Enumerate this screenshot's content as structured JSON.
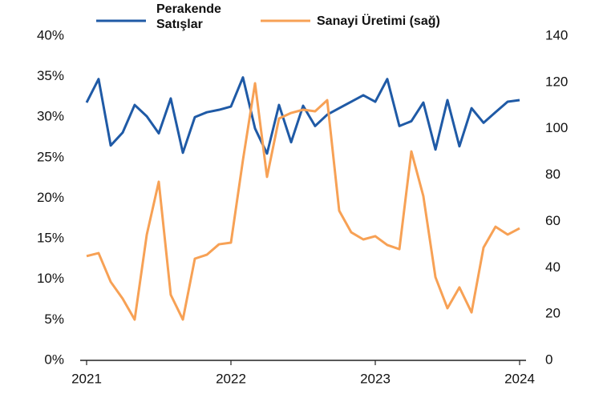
{
  "chart_data": {
    "type": "line",
    "x": [
      2021,
      2021.083,
      2021.167,
      2021.25,
      2021.333,
      2021.417,
      2021.5,
      2021.583,
      2021.667,
      2021.75,
      2021.833,
      2021.917,
      2022,
      2022.083,
      2022.167,
      2022.25,
      2022.333,
      2022.417,
      2022.5,
      2022.583,
      2022.667,
      2022.75,
      2022.833,
      2022.917,
      2023,
      2023.083,
      2023.167,
      2023.25,
      2023.333,
      2023.417,
      2023.5,
      2023.583,
      2023.667,
      2023.75,
      2023.833,
      2023.917,
      2024
    ],
    "series": [
      {
        "name": "Perakende Satışlar",
        "color": "#1f5aa6",
        "axis": "y",
        "values": [
          31.8,
          34.7,
          26.5,
          28.1,
          31.5,
          30.1,
          28,
          32.3,
          25.6,
          30,
          30.6,
          30.9,
          31.3,
          34.9,
          28.6,
          25.5,
          31.5,
          26.9,
          31.4,
          28.9,
          30.3,
          31.1,
          31.9,
          32.7,
          31.9,
          34.7,
          28.9,
          29.5,
          31.8,
          26,
          32.1,
          26.4,
          31.1,
          29.3,
          30.6,
          31.9,
          32.1
        ]
      },
      {
        "name": "Sanayi Üretimi (sağ)",
        "color": "#f7a155",
        "axis": "y2",
        "values": [
          45,
          46.3,
          33.9,
          26.6,
          17.6,
          54.3,
          77.1,
          28.3,
          17.6,
          43.9,
          45.6,
          50.1,
          50.8,
          86.4,
          119.6,
          79.2,
          104.4,
          106.8,
          108.2,
          107.5,
          112.3,
          64.6,
          55.3,
          52.2,
          53.6,
          49.8,
          48,
          90.2,
          70.9,
          35.9,
          22.5,
          31.5,
          20.7,
          48.7,
          57.7,
          54.3,
          57
        ]
      }
    ],
    "xlim": [
      2021,
      2024
    ],
    "xticks": [
      2021,
      2022,
      2023,
      2024
    ],
    "ylim": [
      0,
      40
    ],
    "yticks": [
      {
        "value": 0,
        "label": "0%"
      },
      {
        "value": 5,
        "label": "5%"
      },
      {
        "value": 10,
        "label": "10%"
      },
      {
        "value": 15,
        "label": "15%"
      },
      {
        "value": 20,
        "label": "20%"
      },
      {
        "value": 25,
        "label": "25%"
      },
      {
        "value": 30,
        "label": "30%"
      },
      {
        "value": 35,
        "label": "35%"
      },
      {
        "value": 40,
        "label": "40%"
      }
    ],
    "y2lim": [
      0,
      140
    ],
    "y2ticks": [
      0,
      20,
      40,
      60,
      80,
      100,
      120,
      140
    ],
    "legend": "top"
  }
}
